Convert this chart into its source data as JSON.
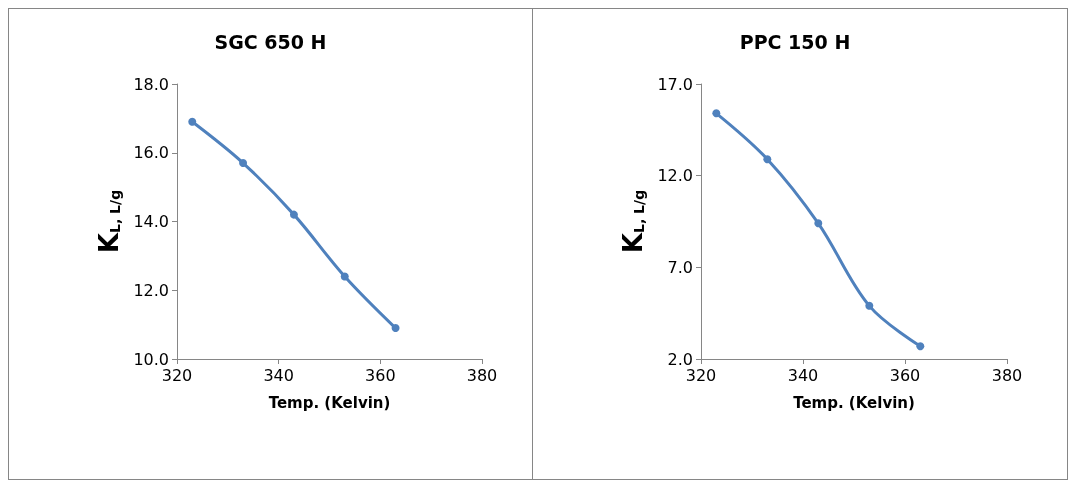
{
  "chart_data": [
    {
      "type": "line",
      "title": "SGC 650 H",
      "xlabel": "Temp. (Kelvin)",
      "ylabel": "K$_{L, L/g}$",
      "x": [
        323,
        333,
        343,
        353,
        363
      ],
      "series": [
        {
          "color": "#4f81bd",
          "values": [
            16.9,
            15.7,
            14.2,
            12.4,
            10.9
          ]
        }
      ],
      "xlim": [
        320,
        380
      ],
      "xticks": [
        320,
        340,
        360,
        380
      ],
      "ylim": [
        10,
        18
      ],
      "yticks": [
        {
          "value": 10,
          "label": "10.0"
        },
        {
          "value": 12,
          "label": "12.0"
        },
        {
          "value": 14,
          "label": "14.0"
        },
        {
          "value": 16,
          "label": "16.0"
        },
        {
          "value": 18,
          "label": "18.0"
        }
      ],
      "grid": false,
      "marker": "circle",
      "line_style": "solid"
    },
    {
      "type": "line",
      "title": "PPC 150 H",
      "xlabel": "Temp. (Kelvin)",
      "ylabel": "K$_{L, L/g}$",
      "x": [
        323,
        333,
        343,
        353,
        363
      ],
      "series": [
        {
          "color": "#4f81bd",
          "values": [
            15.4,
            12.9,
            9.4,
            4.9,
            2.7
          ]
        }
      ],
      "xlim": [
        320,
        380
      ],
      "xticks": [
        320,
        340,
        360,
        380
      ],
      "ylim": [
        2,
        17
      ],
      "yticks": [
        {
          "value": 2,
          "label": "2.0"
        },
        {
          "value": 7,
          "label": "7.0"
        },
        {
          "value": 12,
          "label": "12.0"
        },
        {
          "value": 17,
          "label": "17.0"
        }
      ],
      "grid": false,
      "marker": "circle",
      "line_style": "solid"
    }
  ]
}
